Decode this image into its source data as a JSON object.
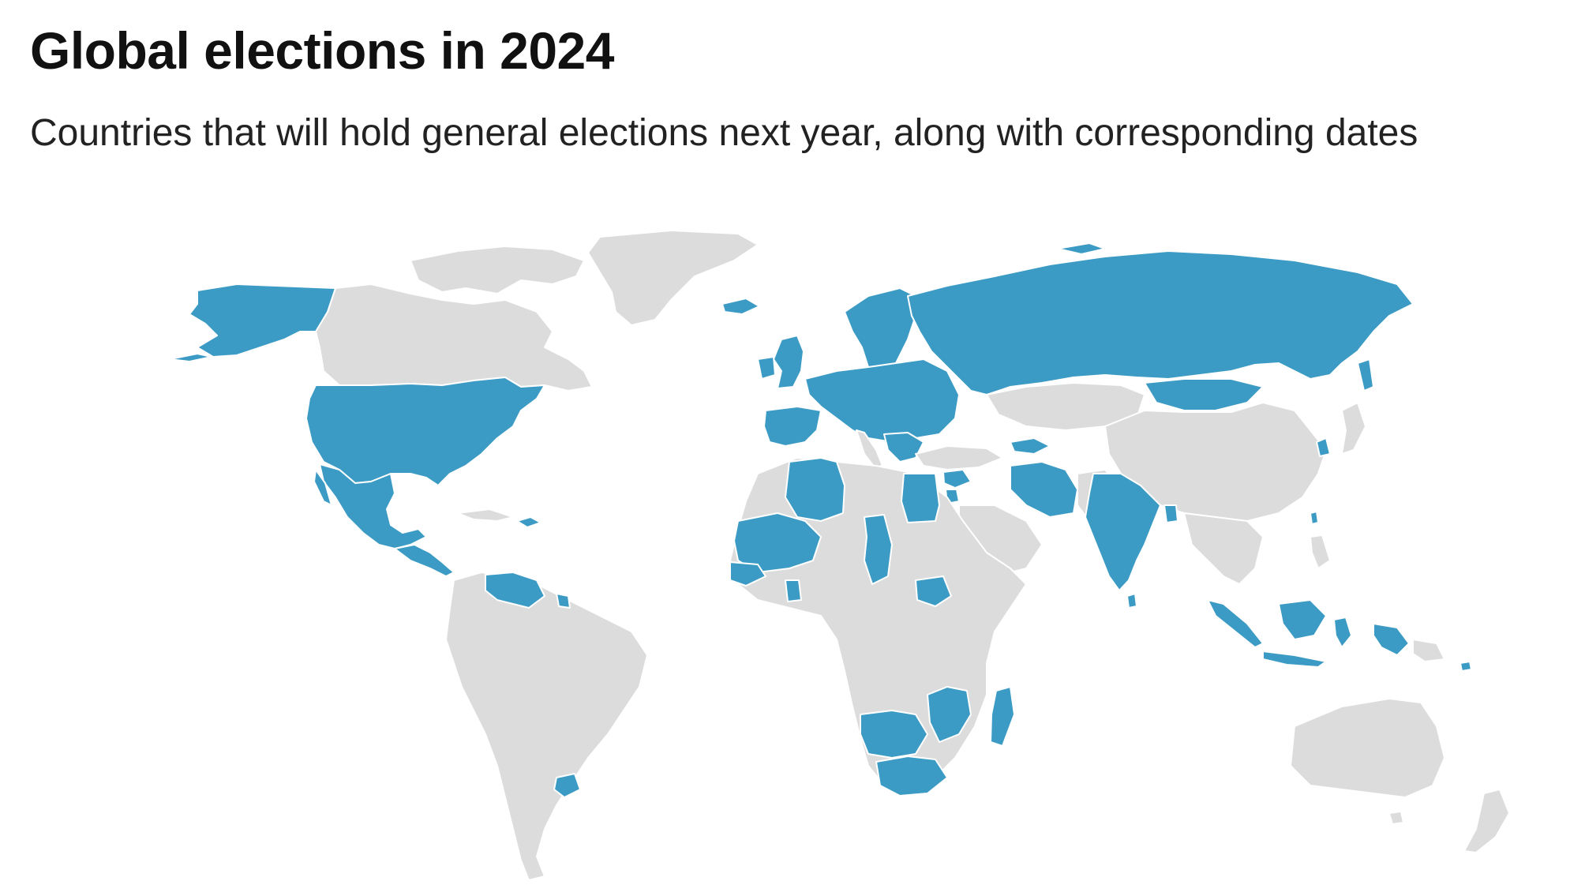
{
  "header": {
    "title": "Global elections in 2024",
    "subtitle": "Countries that will hold general elections next year, along with corresponding dates"
  },
  "map": {
    "colors": {
      "election": "#3b9bc4",
      "no_election": "#dcdcdc",
      "background": "#ffffff",
      "border": "#ffffff"
    },
    "highlighted_regions": [
      "Alaska",
      "United States",
      "Mexico",
      "Central America",
      "Dominican Republic",
      "Venezuela",
      "Suriname",
      "Uruguay",
      "Iceland",
      "United Kingdom",
      "Ireland",
      "Portugal",
      "Spain",
      "Europe",
      "Russia",
      "Georgia",
      "Azerbaijan",
      "Iran",
      "Syria",
      "Jordan",
      "India",
      "Sri Lanka",
      "Bangladesh",
      "Mongolia",
      "South Korea",
      "Taiwan",
      "Indonesia",
      "Mauritania",
      "Mali",
      "Senegal",
      "Guinea-Bissau",
      "Ghana",
      "Togo",
      "Algeria",
      "Tunisia",
      "Egypt",
      "Chad",
      "South Sudan",
      "Mozambique",
      "Madagascar",
      "Namibia",
      "Botswana",
      "South Africa",
      "Zimbabwe",
      "Palau",
      "Kiribati",
      "Solomon Islands",
      "Comoros",
      "Mauritius"
    ]
  }
}
